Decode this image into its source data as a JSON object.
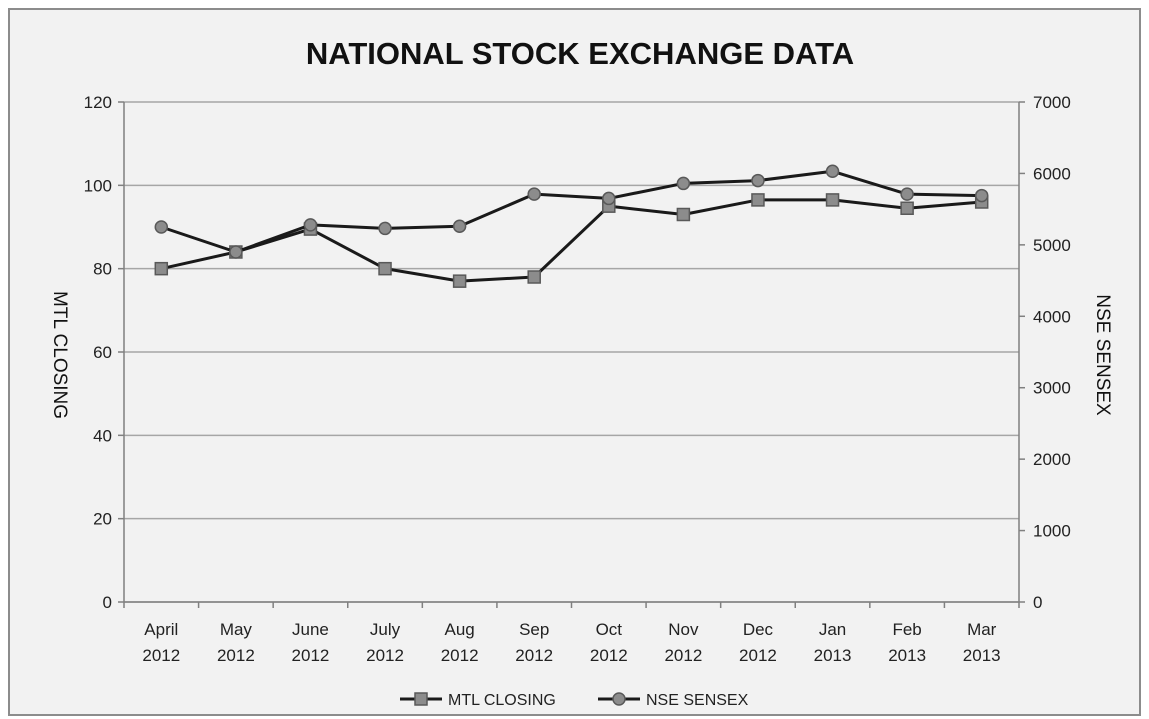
{
  "chart_data": {
    "type": "line",
    "title": "NATIONAL STOCK EXCHANGE DATA",
    "categories": [
      [
        "April",
        "2012"
      ],
      [
        "May",
        "2012"
      ],
      [
        "June",
        "2012"
      ],
      [
        "July",
        "2012"
      ],
      [
        "Aug",
        "2012"
      ],
      [
        "Sep",
        "2012"
      ],
      [
        "Oct",
        "2012"
      ],
      [
        "Nov",
        "2012"
      ],
      [
        "Dec",
        "2012"
      ],
      [
        "Jan",
        "2013"
      ],
      [
        "Feb",
        "2013"
      ],
      [
        "Mar",
        "2013"
      ]
    ],
    "ylabel": "MTL CLOSING",
    "ylabel_right": "NSE SENSEX",
    "ylim": [
      0,
      120
    ],
    "ylim_right": [
      0,
      7000
    ],
    "yticks": [
      "0",
      "20",
      "40",
      "60",
      "80",
      "100",
      "120"
    ],
    "yticks_right": [
      "0",
      "1000",
      "2000",
      "3000",
      "4000",
      "5000",
      "6000",
      "7000"
    ],
    "grid": true,
    "legend_position": "bottom",
    "series": [
      {
        "name": "MTL CLOSING",
        "axis": "left",
        "marker": "square",
        "values": [
          80,
          84,
          89.5,
          80,
          77,
          78,
          95,
          93,
          96.5,
          96.5,
          94.5,
          96
        ]
      },
      {
        "name": "NSE SENSEX",
        "axis": "right",
        "marker": "circle",
        "values": [
          5250,
          4900,
          5280,
          5230,
          5260,
          5710,
          5650,
          5860,
          5900,
          6030,
          5710,
          5690
        ]
      }
    ],
    "colors": {
      "background": "#f2f2f2",
      "gridline": "#a6a6a6",
      "line": "#1a1a1a",
      "marker_fill": "#8c8c8c",
      "marker_stroke": "#595959"
    }
  }
}
